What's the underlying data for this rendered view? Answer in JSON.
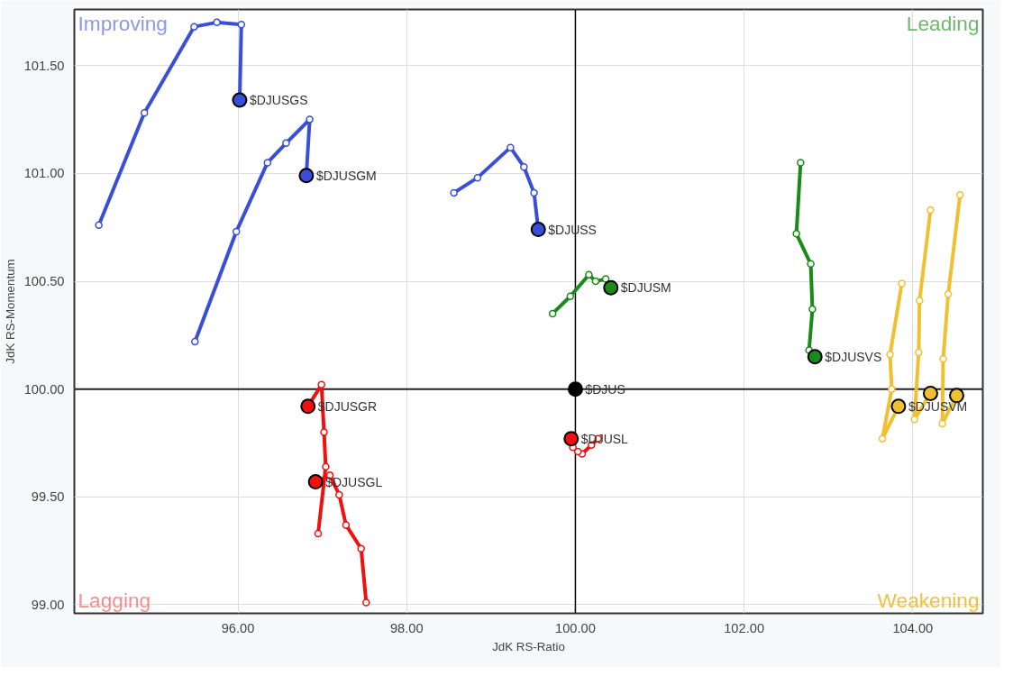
{
  "chart_data": {
    "type": "line",
    "xlabel": "JdK RS-Ratio",
    "ylabel": "JdK RS-Momentum",
    "xlim": [
      94.06,
      104.83
    ],
    "ylim": [
      98.96,
      101.76
    ],
    "xticks": [
      {
        "value": 96,
        "label": "96.00"
      },
      {
        "value": 98,
        "label": "98.00"
      },
      {
        "value": 100,
        "label": "100.00"
      },
      {
        "value": 102,
        "label": "102.00"
      },
      {
        "value": 104,
        "label": "104.00"
      }
    ],
    "yticks": [
      {
        "value": 99,
        "label": "99.00"
      },
      {
        "value": 99.5,
        "label": "99.50"
      },
      {
        "value": 100,
        "label": "100.00"
      },
      {
        "value": 100.5,
        "label": "100.50"
      },
      {
        "value": 101,
        "label": "101.00"
      },
      {
        "value": 101.5,
        "label": "101.50"
      }
    ],
    "grid": true,
    "marker": "circle",
    "line_style": "solid",
    "ref_lines": [
      {
        "axis": "x",
        "value": 100,
        "color": "#000000"
      },
      {
        "axis": "y",
        "value": 100,
        "color": "#222222"
      }
    ],
    "annotations": [
      "Improving",
      "Leading",
      "Lagging",
      "Weakening"
    ],
    "series": [
      {
        "name": "$DJUSGS",
        "color": "#3a4fd8",
        "x": [
          94.35,
          94.89,
          95.48,
          95.75,
          96.04,
          96.02
        ],
        "values": [
          100.76,
          101.28,
          101.68,
          101.7,
          101.69,
          101.34
        ]
      },
      {
        "name": "$DJUSGM",
        "color": "#3a4fd8",
        "x": [
          95.49,
          95.98,
          96.35,
          96.57,
          96.85,
          96.81
        ],
        "values": [
          100.22,
          100.73,
          101.05,
          101.14,
          101.25,
          100.99
        ]
      },
      {
        "name": "$DJUSS",
        "color": "#3a4fd8",
        "x": [
          98.56,
          98.84,
          99.23,
          99.39,
          99.51,
          99.56
        ],
        "values": [
          100.91,
          100.98,
          101.12,
          101.03,
          100.91,
          100.74
        ]
      },
      {
        "name": "$DJUSM",
        "color": "#1a8a1a",
        "x": [
          99.73,
          99.94,
          100.16,
          100.24,
          100.36,
          100.42
        ],
        "values": [
          100.35,
          100.43,
          100.53,
          100.5,
          100.51,
          100.47
        ]
      },
      {
        "name": "$DJUSVS",
        "color": "#1a8a1a",
        "x": [
          102.67,
          102.62,
          102.79,
          102.81,
          102.77,
          102.84
        ],
        "values": [
          101.05,
          100.72,
          100.58,
          100.37,
          100.18,
          100.15
        ]
      },
      {
        "name": "$DJUS",
        "color": "#000000",
        "x": [
          100.0
        ],
        "values": [
          100.0
        ]
      },
      {
        "name": "$DJUSL",
        "color": "#f01010",
        "x": [
          100.27,
          100.19,
          100.08,
          100.03,
          99.97,
          99.95
        ],
        "values": [
          99.77,
          99.74,
          99.7,
          99.71,
          99.73,
          99.77
        ]
      },
      {
        "name": "$DJUSGR",
        "color": "#f01010",
        "x": [
          96.95,
          97.04,
          97.02,
          96.99,
          96.83
        ],
        "values": [
          99.33,
          99.64,
          99.8,
          100.02,
          99.92
        ]
      },
      {
        "name": "$DJUSGL",
        "color": "#f01010",
        "x": [
          97.52,
          97.46,
          97.28,
          97.2,
          97.09,
          96.92
        ],
        "values": [
          99.01,
          99.26,
          99.37,
          99.51,
          99.6,
          99.57
        ]
      },
      {
        "name": "$DJUSVM",
        "color": "#f0c030",
        "x": [
          103.87,
          103.73,
          103.75,
          103.64,
          103.83
        ],
        "values": [
          100.49,
          100.16,
          100.0,
          99.77,
          99.92
        ]
      },
      {
        "color": "#f0c030",
        "x": [
          104.21,
          104.08,
          104.07,
          104.02,
          104.21
        ],
        "values": [
          100.83,
          100.41,
          100.17,
          99.86,
          99.98
        ]
      },
      {
        "color": "#f0c030",
        "x": [
          104.56,
          104.42,
          104.36,
          104.35,
          104.52
        ],
        "values": [
          100.9,
          100.44,
          100.14,
          99.84,
          99.97
        ]
      }
    ]
  }
}
